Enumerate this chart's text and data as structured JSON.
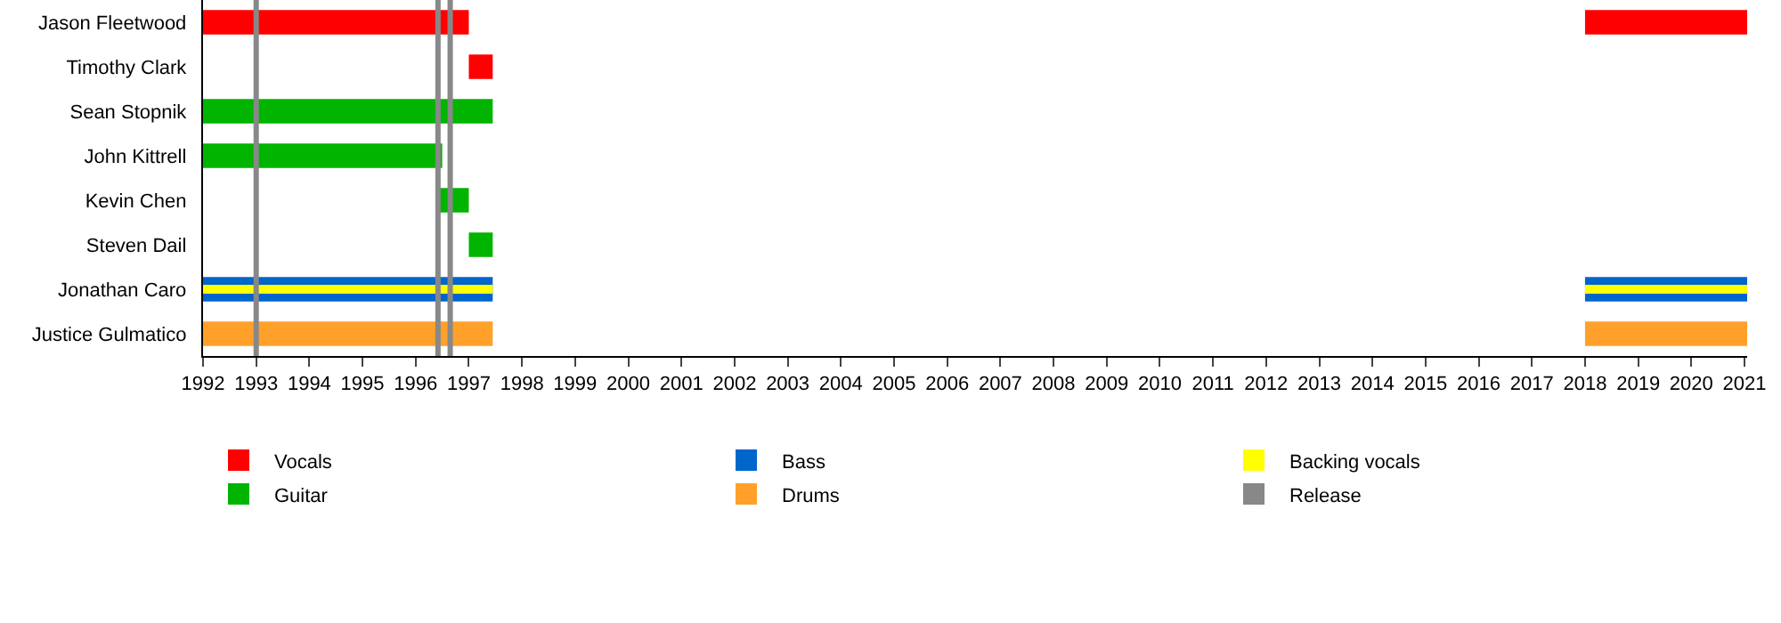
{
  "chart_data": {
    "type": "bar",
    "orientation": "horizontal",
    "categories": [
      "Jason Fleetwood",
      "Timothy Clark",
      "Sean Stopnik",
      "John Kittrell",
      "Kevin Chen",
      "Steven Dail",
      "Jonathan Caro",
      "Justice Gulmatico"
    ],
    "series": [
      {
        "name": "Vocals",
        "color": "#ff0000",
        "values": [
          5,
          0.45,
          null,
          null,
          null,
          null,
          null,
          null
        ],
        "base": [
          1992,
          1997,
          null,
          null,
          null,
          null,
          null,
          null
        ]
      },
      {
        "name": "Bass",
        "color": "#0066cc",
        "values": [
          null,
          null,
          null,
          null,
          null,
          null,
          5.45,
          null
        ],
        "base": [
          null,
          null,
          null,
          null,
          null,
          null,
          1992,
          null
        ]
      },
      {
        "name": "Backing vocals",
        "color": "#ffff00",
        "values": [
          null,
          null,
          null,
          null,
          null,
          null,
          5.45,
          null
        ],
        "base": [
          null,
          null,
          null,
          null,
          null,
          null,
          1992,
          null
        ]
      },
      {
        "name": "Guitar",
        "color": "#00b400",
        "values": [
          null,
          null,
          5.45,
          4.5,
          0.55,
          0.45,
          null,
          null
        ],
        "base": [
          null,
          null,
          1992,
          1992,
          1996.45,
          1997,
          null,
          null
        ]
      },
      {
        "name": "Drums",
        "color": "#ffa02a",
        "values": [
          null,
          null,
          null,
          null,
          null,
          null,
          null,
          5.45
        ],
        "base": [
          null,
          null,
          null,
          null,
          null,
          null,
          null,
          1992
        ]
      },
      {
        "color": "#ff0000",
        "values": [
          3.05,
          null,
          null,
          null,
          null,
          null,
          null,
          null
        ],
        "base": [
          2018,
          null,
          null,
          null,
          null,
          null,
          null,
          null
        ]
      },
      {
        "color": "#0066cc",
        "values": [
          null,
          null,
          null,
          null,
          null,
          null,
          3.05,
          null
        ],
        "base": [
          null,
          null,
          null,
          null,
          null,
          null,
          2018,
          null
        ]
      },
      {
        "color": "#ffff00",
        "values": [
          null,
          null,
          null,
          null,
          null,
          null,
          3.05,
          null
        ],
        "base": [
          null,
          null,
          null,
          null,
          null,
          null,
          2018,
          null
        ]
      },
      {
        "color": "#ffa02a",
        "values": [
          null,
          null,
          null,
          null,
          null,
          null,
          null,
          3.05
        ],
        "base": [
          null,
          null,
          null,
          null,
          null,
          null,
          null,
          2018
        ]
      }
    ],
    "ref_lines": [
      {
        "axis": "x",
        "value": 1993,
        "label": "Release",
        "color": "#888888"
      },
      {
        "axis": "x",
        "value": 1996.42,
        "color": "#888888"
      },
      {
        "axis": "x",
        "value": 1996.65,
        "color": "#888888"
      }
    ],
    "xlim": [
      1992,
      2021.05
    ],
    "xticks": [
      1992,
      1993,
      1994,
      1995,
      1996,
      1997,
      1998,
      1999,
      2000,
      2001,
      2002,
      2003,
      2004,
      2005,
      2006,
      2007,
      2008,
      2009,
      2010,
      2011,
      2012,
      2013,
      2014,
      2015,
      2016,
      2017,
      2018,
      2019,
      2020,
      2021
    ],
    "grid": false,
    "legend": "bottom"
  }
}
